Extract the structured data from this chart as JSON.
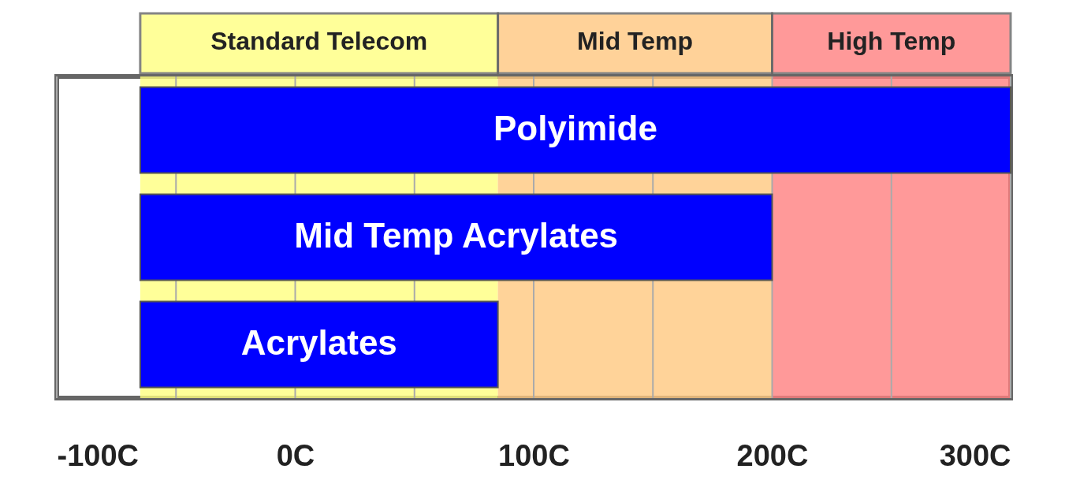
{
  "chart_data": {
    "type": "bar",
    "orientation": "horizontal",
    "categories": [
      "Polyimide",
      "Mid Temp Acrylates",
      "Acrylates"
    ],
    "base": [
      -65,
      -65,
      -65
    ],
    "values": [
      365,
      265,
      150
    ],
    "color": "#0000ff",
    "xlim": [
      -100,
      300
    ],
    "xticks": [
      {
        "value": -100,
        "label": "-100C"
      },
      {
        "value": -50,
        "label": null
      },
      {
        "value": 0,
        "label": "0C"
      },
      {
        "value": 50,
        "label": null
      },
      {
        "value": 100,
        "label": "100C"
      },
      {
        "value": 150,
        "label": null
      },
      {
        "value": 200,
        "label": "200C"
      },
      {
        "value": 250,
        "label": null
      },
      {
        "value": 300,
        "label": "300C"
      }
    ],
    "bands": [
      {
        "axis": "x",
        "from": -65,
        "to": 85,
        "label": "Standard Telecom",
        "color": "#ffff80"
      },
      {
        "axis": "x",
        "from": 85,
        "to": 200,
        "label": "Mid Temp",
        "color": "#ffc880"
      },
      {
        "axis": "x",
        "from": 200,
        "to": 300,
        "label": "High Temp",
        "color": "#ff8080"
      }
    ],
    "grid": "x"
  }
}
